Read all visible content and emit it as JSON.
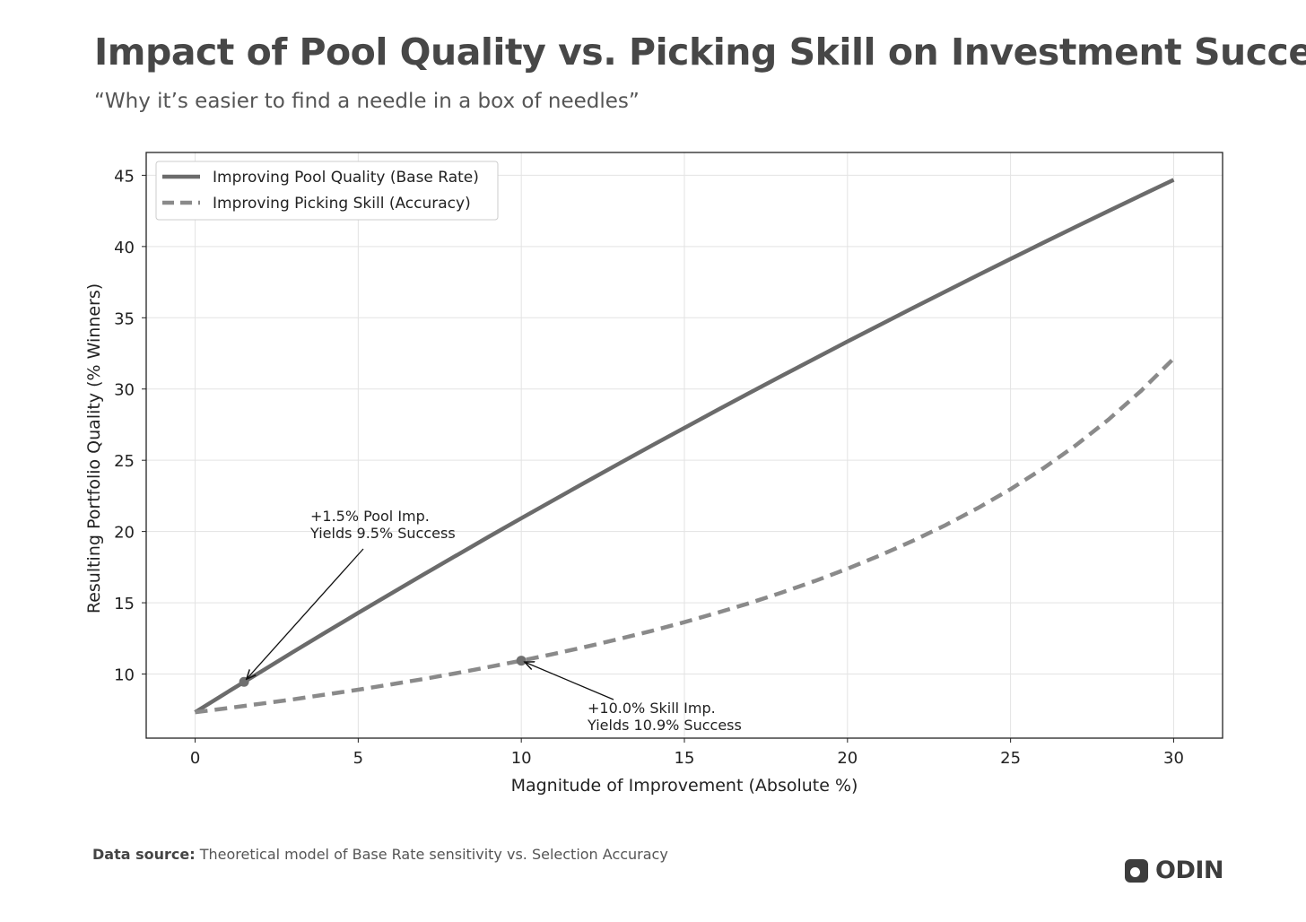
{
  "header": {
    "title": "Impact of Pool Quality vs. Picking Skill on Investment Success",
    "subtitle": "“Why it’s easier to find a needle in a box of needles”"
  },
  "footer": {
    "source_label": "Data source:",
    "source_text": " Theoretical model of Base Rate sensitivity vs. Selection Accuracy",
    "logo_text": "ODIN"
  },
  "chart_data": {
    "type": "line",
    "xlabel": "Magnitude of Improvement (Absolute %)",
    "ylabel": "Resulting Portfolio Quality (% Winners)",
    "xlim": [
      -1.5,
      31.5
    ],
    "ylim": [
      5.5,
      46.6
    ],
    "xticks": [
      0,
      5,
      10,
      15,
      20,
      25,
      30
    ],
    "yticks": [
      10,
      15,
      20,
      25,
      30,
      35,
      40,
      45
    ],
    "grid": true,
    "legend": "top-left",
    "x": [
      0,
      1,
      2,
      3,
      4,
      5,
      6,
      7,
      8,
      9,
      10,
      11,
      12,
      13,
      14,
      15,
      16,
      17,
      18,
      19,
      20,
      21,
      22,
      23,
      24,
      25,
      26,
      27,
      28,
      29,
      30
    ],
    "series": [
      {
        "name": "Improving Pool Quality (Base Rate)",
        "style": "solid",
        "color": "#6b6b6b",
        "values": [
          7.32,
          8.74,
          10.14,
          11.54,
          12.92,
          14.29,
          15.64,
          16.98,
          18.31,
          19.63,
          20.93,
          22.22,
          23.5,
          24.77,
          26.03,
          27.27,
          28.51,
          29.73,
          30.94,
          32.14,
          33.33,
          34.51,
          35.68,
          36.84,
          37.99,
          39.13,
          40.26,
          41.38,
          42.49,
          43.59,
          44.68
        ]
      },
      {
        "name": "Improving Picking Skill (Accuracy)",
        "style": "dashed",
        "color": "#8a8a8a",
        "values": [
          7.32,
          7.61,
          7.91,
          8.22,
          8.56,
          8.9,
          9.27,
          9.65,
          10.06,
          10.49,
          10.94,
          11.41,
          11.92,
          12.46,
          13.03,
          13.64,
          14.29,
          14.98,
          15.73,
          16.53,
          17.39,
          18.33,
          19.34,
          20.44,
          21.65,
          22.97,
          24.43,
          26.05,
          27.85,
          29.87,
          32.14
        ]
      }
    ],
    "annotations": [
      {
        "point": [
          1.5,
          9.45
        ],
        "lines": [
          "+1.5% Pool Imp.",
          "Yields 9.5% Success"
        ]
      },
      {
        "point": [
          10,
          10.94
        ],
        "lines": [
          "+10.0% Skill Imp.",
          "Yields 10.9% Success"
        ]
      }
    ]
  }
}
